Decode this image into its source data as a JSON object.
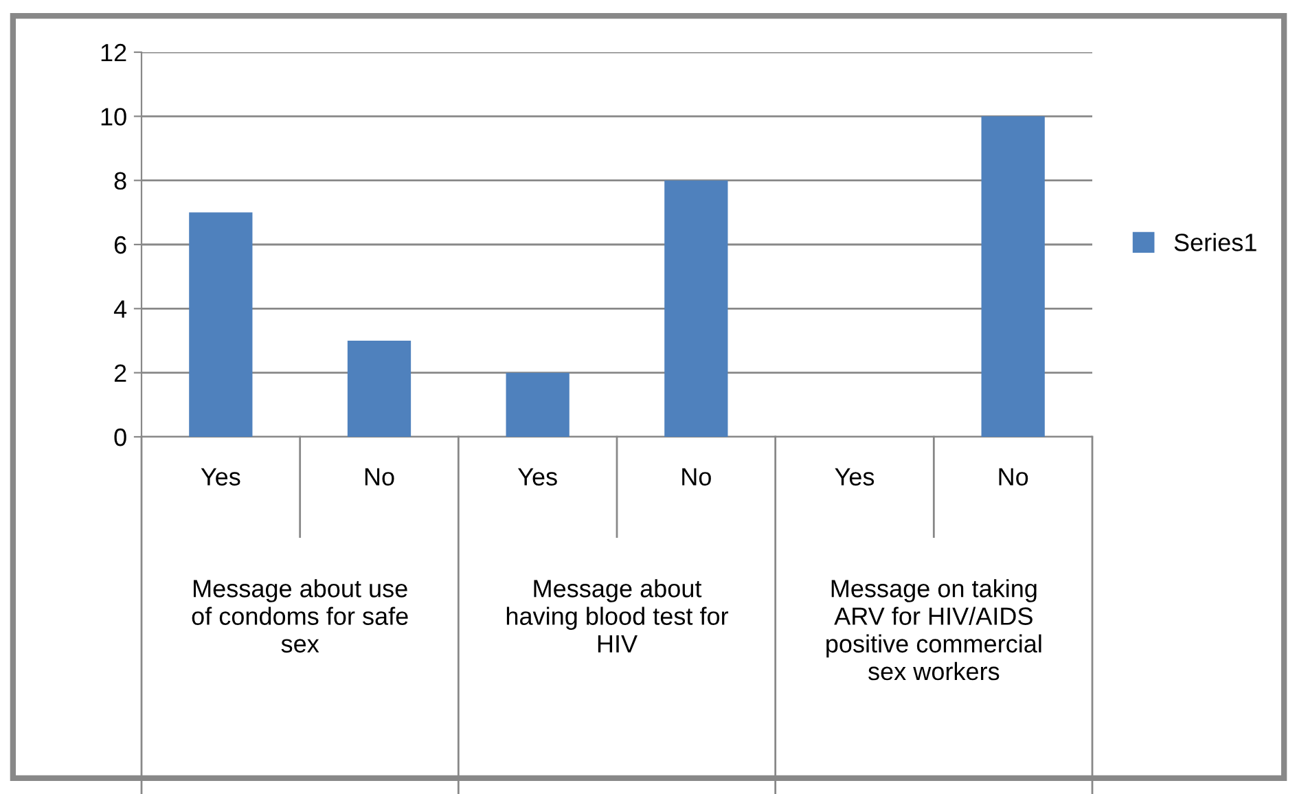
{
  "chart_data": {
    "type": "bar",
    "categories": [
      "Yes",
      "No",
      "Yes",
      "No",
      "Yes",
      "No"
    ],
    "series": [
      {
        "name": "Series1",
        "color": "#4f81bd",
        "values": [
          7,
          3,
          2,
          8,
          0,
          10
        ]
      }
    ],
    "annotations": [
      "Message about use\nof condoms for safe\nsex",
      "Message about\nhaving blood test for\nHIV",
      "Message on taking\nARV for HIV/AIDS\npositive commercial\nsex workers"
    ],
    "ylim": [
      0,
      12
    ],
    "yticks": [
      0,
      2,
      4,
      6,
      8,
      10,
      12
    ],
    "grid": "y",
    "legend": "right"
  }
}
